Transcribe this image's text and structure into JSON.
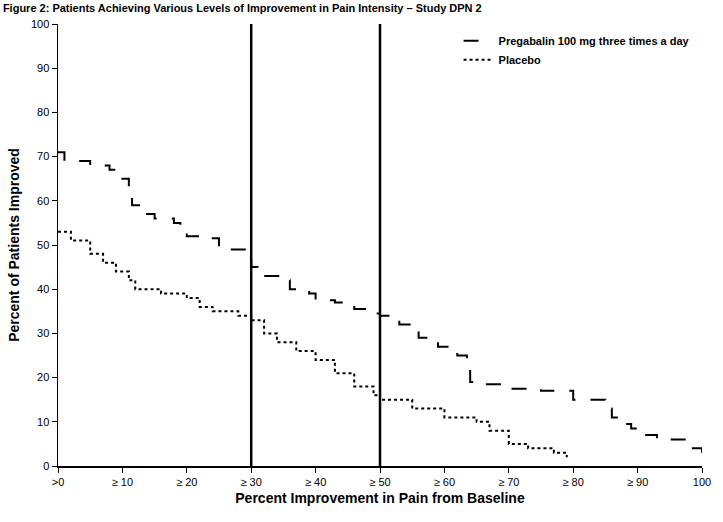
{
  "chart_data": {
    "type": "line",
    "title": "Figure 2: Patients Achieving Various Levels of Improvement in Pain Intensity – Study DPN 2",
    "x_label": "Percent Improvement in Pain from Baseline",
    "y_label": "Percent of Patients Improved",
    "series": [
      {
        "name": "Pregabalin 100 mg three times a day",
        "color": "#000000",
        "line_style": "dashed",
        "x": [
          0,
          1,
          5,
          8,
          10,
          11,
          11.5,
          13,
          15,
          18,
          19,
          20,
          23,
          25,
          29,
          30,
          31,
          35,
          36,
          39,
          40,
          43,
          46,
          49,
          50,
          53,
          56,
          59,
          62,
          63.5,
          64,
          65,
          70,
          75,
          80,
          85,
          86,
          87,
          89,
          90,
          93,
          97,
          97.5,
          100
        ],
        "values": [
          71,
          69,
          68,
          67,
          65,
          63,
          59,
          57,
          56,
          55,
          53,
          52,
          51.5,
          49,
          48,
          45,
          43,
          42,
          40,
          39,
          37.5,
          37,
          35.5,
          34.5,
          34,
          32,
          29,
          27,
          25,
          23,
          19,
          18.5,
          17.5,
          17,
          15,
          13,
          11,
          9.5,
          8.5,
          7,
          6,
          6,
          4,
          3
        ]
      },
      {
        "name": "Placebo",
        "color": "#000000",
        "line_style": "dotted",
        "x": [
          0,
          2,
          5,
          7,
          9,
          11,
          12,
          16,
          20,
          22,
          24,
          28,
          30,
          32,
          34,
          37,
          40,
          43,
          46,
          49,
          50,
          55,
          60,
          65,
          67,
          70,
          73,
          77,
          79
        ],
        "values": [
          53,
          51,
          48,
          46,
          44,
          42,
          40,
          39,
          38,
          36,
          35,
          34,
          33,
          30,
          28,
          26,
          24,
          21,
          18,
          16,
          15,
          13,
          11,
          10,
          8,
          5,
          4,
          3,
          2
        ]
      }
    ],
    "vlines": [
      30,
      50
    ],
    "xlim": [
      0,
      100
    ],
    "ylim": [
      0,
      100
    ],
    "xticks": [
      {
        "value": 0,
        "label": ">0"
      },
      {
        "value": 10,
        "label": "≥ 10"
      },
      {
        "value": 20,
        "label": "≥ 20"
      },
      {
        "value": 30,
        "label": "≥ 30"
      },
      {
        "value": 40,
        "label": "≥ 40"
      },
      {
        "value": 50,
        "label": "≥ 50"
      },
      {
        "value": 60,
        "label": "≥ 60"
      },
      {
        "value": 70,
        "label": "≥ 70"
      },
      {
        "value": 80,
        "label": "≥ 80"
      },
      {
        "value": 90,
        "label": "≥ 90"
      },
      100
    ],
    "yticks": [
      0,
      10,
      20,
      30,
      40,
      50,
      60,
      70,
      80,
      90,
      100
    ],
    "grid": false,
    "legend": "top right"
  }
}
